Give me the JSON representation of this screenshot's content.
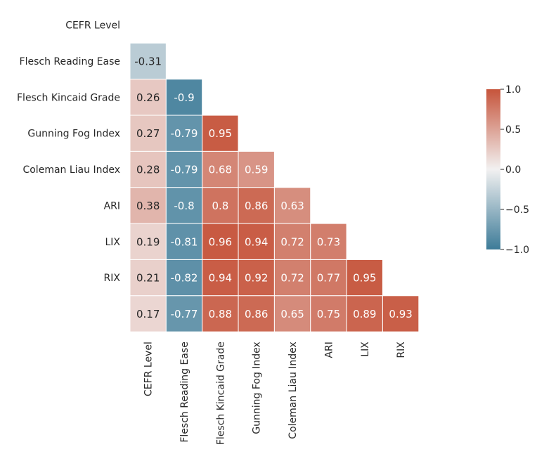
{
  "chart_data": {
    "type": "heatmap",
    "title": "",
    "row_labels": [
      "CEFR Level",
      "Flesch Reading Ease",
      "Flesch Kincaid Grade",
      "Gunning Fog Index",
      "Coleman Liau Index",
      "ARI",
      "LIX",
      "RIX",
      ""
    ],
    "col_labels": [
      "CEFR Level",
      "Flesch Reading Ease",
      "Flesch Kincaid Grade",
      "Gunning Fog Index",
      "Coleman Liau Index",
      "ARI",
      "LIX",
      "RIX"
    ],
    "mask": "upper-triangle (only cells below the diagonal shown)",
    "values": [
      [],
      [
        -0.31
      ],
      [
        0.26,
        -0.9
      ],
      [
        0.27,
        -0.79,
        0.95
      ],
      [
        0.28,
        -0.79,
        0.68,
        0.59
      ],
      [
        0.38,
        -0.8,
        0.8,
        0.86,
        0.63
      ],
      [
        0.19,
        -0.81,
        0.96,
        0.94,
        0.72,
        0.73
      ],
      [
        0.21,
        -0.82,
        0.94,
        0.92,
        0.72,
        0.77,
        0.95
      ],
      [
        0.17,
        -0.77,
        0.88,
        0.86,
        0.65,
        0.75,
        0.89,
        0.93
      ]
    ],
    "cell_labels": [
      [],
      [
        "-0.31"
      ],
      [
        "0.26",
        "-0.9"
      ],
      [
        "0.27",
        "-0.79",
        "0.95"
      ],
      [
        "0.28",
        "-0.79",
        "0.68",
        "0.59"
      ],
      [
        "0.38",
        "-0.8",
        "0.8",
        "0.86",
        "0.63"
      ],
      [
        "0.19",
        "-0.81",
        "0.96",
        "0.94",
        "0.72",
        "0.73"
      ],
      [
        "0.21",
        "-0.82",
        "0.94",
        "0.92",
        "0.72",
        "0.77",
        "0.95"
      ],
      [
        "0.17",
        "-0.77",
        "0.88",
        "0.86",
        "0.65",
        "0.75",
        "0.89",
        "0.93"
      ]
    ],
    "colorbar": {
      "vmin": -1.0,
      "vmax": 1.0,
      "ticks": [
        1.0,
        0.5,
        0.0,
        -0.5,
        -1.0
      ],
      "tick_labels": [
        "1.0",
        "0.5",
        "0.0",
        "−0.5",
        "−1.0"
      ]
    },
    "colormap": {
      "negative_end": "#3d7b98",
      "center": "#f2f1f1",
      "positive_end": "#c6543b"
    },
    "grid": false,
    "legend": "colorbar right"
  }
}
